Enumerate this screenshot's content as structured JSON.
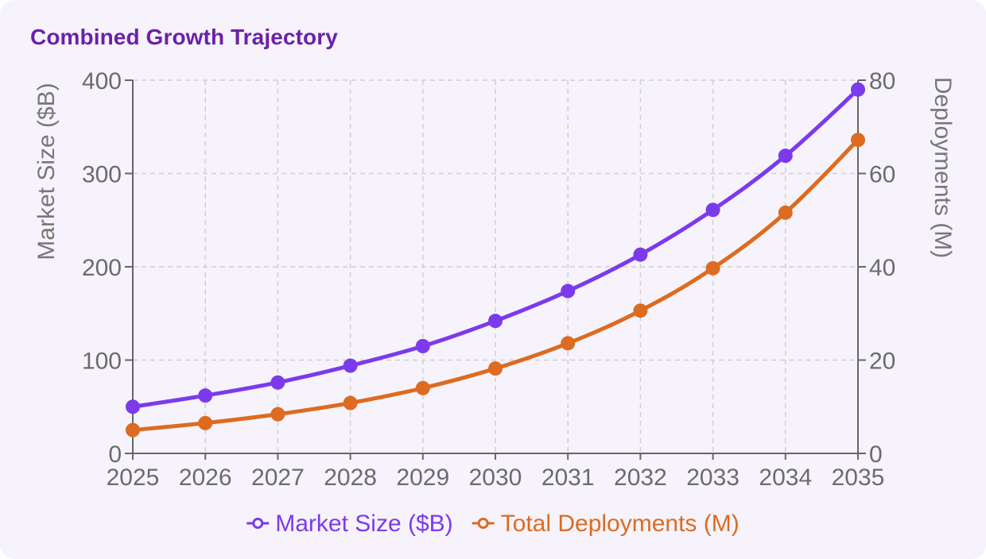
{
  "card": {
    "title": "Combined Growth Trajectory"
  },
  "chart_data": {
    "type": "line",
    "title": "Combined Growth Trajectory",
    "xlabel": "",
    "categories": [
      "2025",
      "2026",
      "2027",
      "2028",
      "2029",
      "2030",
      "2031",
      "2032",
      "2033",
      "2034",
      "2035"
    ],
    "y_left": {
      "label": "Market Size ($B)",
      "range": [
        0,
        400
      ],
      "ticks": [
        0,
        100,
        200,
        300,
        400
      ]
    },
    "y_right": {
      "label": "Deployments (M)",
      "range": [
        0,
        80
      ],
      "ticks": [
        0,
        20,
        40,
        60,
        80
      ]
    },
    "grid": true,
    "legend_position": "bottom",
    "series": [
      {
        "name": "Market Size ($B)",
        "axis": "left",
        "color": "#7c3aed",
        "values": [
          50,
          62,
          76,
          94,
          115,
          142,
          174,
          213,
          261,
          319,
          390
        ]
      },
      {
        "name": "Total Deployments (M)",
        "axis": "right",
        "color": "#dd6b20",
        "values": [
          5,
          6.5,
          8.4,
          10.8,
          14,
          18.2,
          23.6,
          30.6,
          39.7,
          51.6,
          67.2
        ]
      }
    ]
  }
}
